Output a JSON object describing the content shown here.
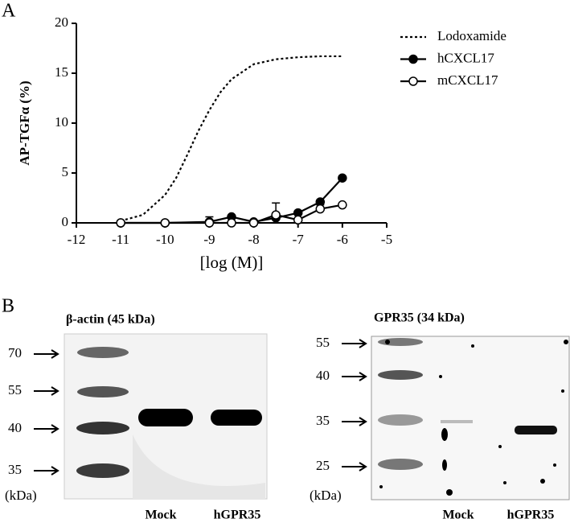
{
  "panel_a": {
    "label": "A"
  },
  "chart_data": {
    "type": "line",
    "xlabel": "[log (M)]",
    "ylabel": "AP-TGFα (%)",
    "xlim": [
      -12,
      -5
    ],
    "xticks": [
      -12,
      -11,
      -10,
      -9,
      -8,
      -7,
      -6,
      -5
    ],
    "ylim": [
      0,
      20
    ],
    "yticks": [
      0,
      5,
      10,
      15,
      20
    ],
    "legend": "upper right",
    "series": [
      {
        "name": "Lodoxamide",
        "color": "#000000",
        "line_style": "dotted",
        "marker": "none",
        "x": [
          -11,
          -10.5,
          -10,
          -9.75,
          -9.5,
          -9.25,
          -9,
          -8.75,
          -8.5,
          -8,
          -7.5,
          -7,
          -6.5,
          -6
        ],
        "values": [
          0.2,
          0.8,
          2.8,
          4.5,
          6.8,
          9.2,
          11.3,
          13.1,
          14.4,
          15.9,
          16.4,
          16.6,
          16.7,
          16.7
        ]
      },
      {
        "name": "hCXCL17",
        "color": "#000000",
        "line_style": "solid",
        "marker": "filled",
        "x": [
          -11,
          -10,
          -9,
          -8.5,
          -8,
          -7.5,
          -7,
          -6.5,
          -6
        ],
        "values": [
          0,
          0,
          0.1,
          0.6,
          0.1,
          0.5,
          1.0,
          2.1,
          4.5
        ],
        "errors": [
          null,
          null,
          0.5,
          null,
          null,
          null,
          null,
          null,
          null
        ]
      },
      {
        "name": "mCXCL17",
        "color": "#000000",
        "line_style": "solid",
        "marker": "open",
        "x": [
          -11,
          -10,
          -9,
          -8.5,
          -8,
          -7.5,
          -7,
          -6.5,
          -6
        ],
        "values": [
          0,
          0,
          0,
          0,
          0,
          0.8,
          0.3,
          1.4,
          1.8
        ],
        "errors": [
          null,
          null,
          null,
          null,
          null,
          1.2,
          null,
          0.4,
          null
        ]
      }
    ]
  },
  "panel_b": {
    "label": "B",
    "blots": [
      {
        "title": "β-actin (45 kDa)",
        "markers": [
          "70",
          "55",
          "40",
          "35"
        ],
        "unit": "(kDa)",
        "lanes": [
          "Mock",
          "hGPR35"
        ]
      },
      {
        "title": "GPR35 (34 kDa)",
        "markers": [
          "55",
          "40",
          "35",
          "25"
        ],
        "unit": "(kDa)",
        "lanes": [
          "Mock",
          "hGPR35"
        ]
      }
    ]
  }
}
